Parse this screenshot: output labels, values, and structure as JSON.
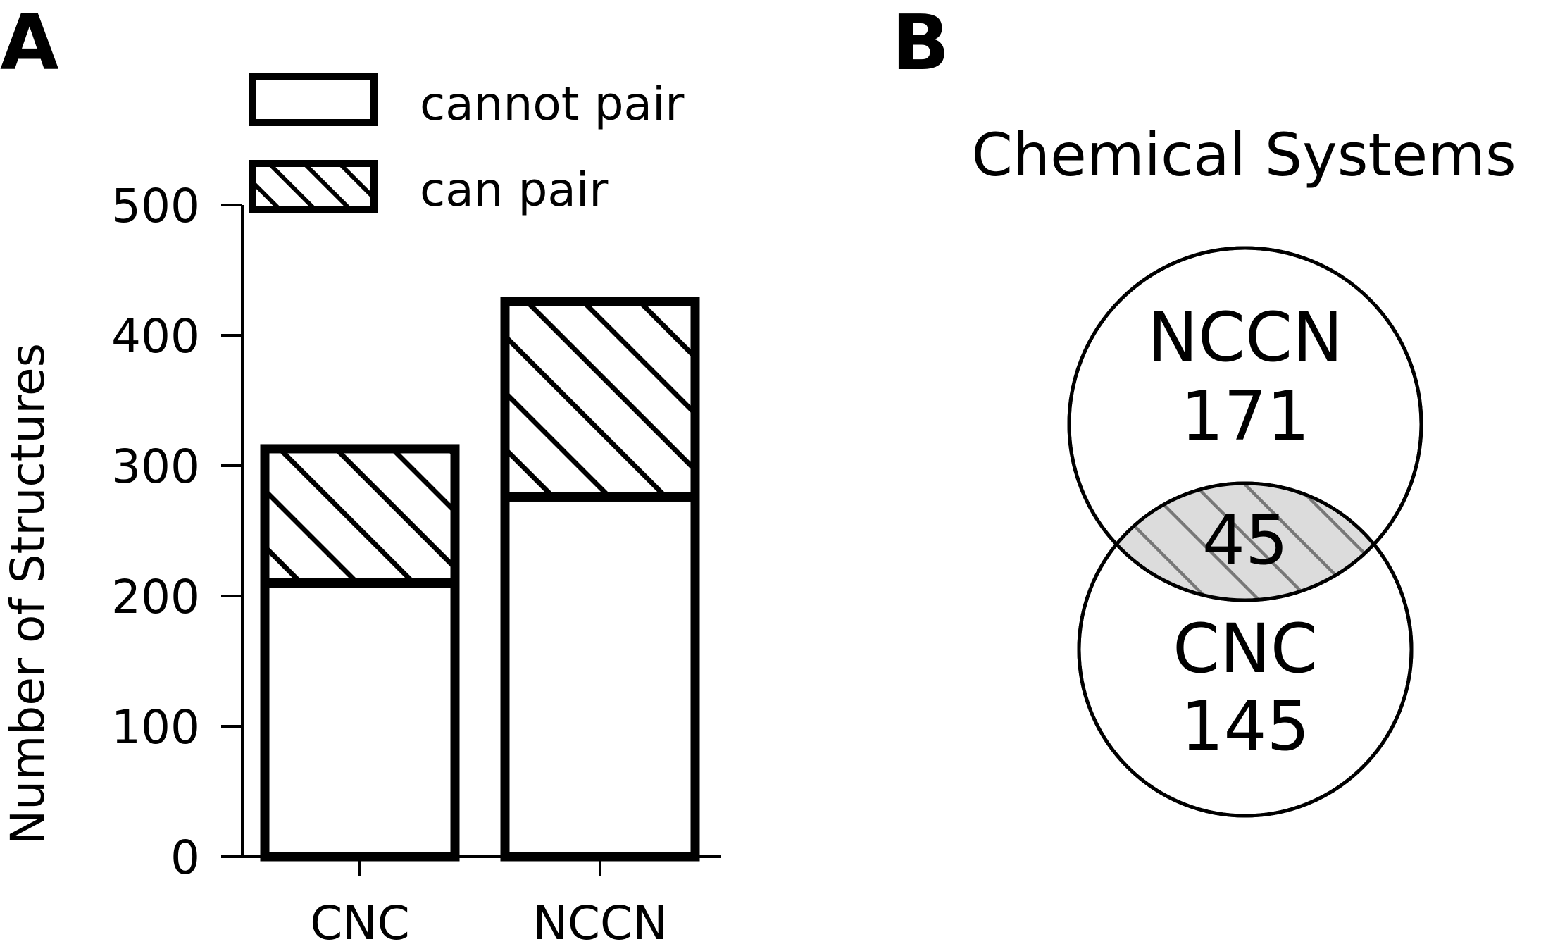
{
  "panel_a": {
    "letter": "A"
  },
  "panel_b": {
    "letter": "B",
    "title": "Chemical Systems"
  },
  "chart_data": [
    {
      "type": "bar",
      "stacked": true,
      "categories": [
        "CNC",
        "NCCN"
      ],
      "series": [
        {
          "name": "cannot pair",
          "values": [
            210,
            276
          ],
          "fill": "white"
        },
        {
          "name": "can pair",
          "values": [
            103,
            150
          ],
          "fill": "hatched"
        }
      ],
      "ylabel": "Number of Structures",
      "xlabel": "",
      "ylim": [
        0,
        500
      ],
      "yticks": [
        "0",
        "100",
        "200",
        "300",
        "400",
        "500"
      ],
      "legend_placement": "top",
      "grid": false
    },
    {
      "type": "venn",
      "title": "Chemical Systems",
      "sets": [
        {
          "name": "NCCN",
          "value": "171"
        },
        {
          "name": "CNC",
          "value": "145"
        }
      ],
      "intersection": "45"
    }
  ]
}
